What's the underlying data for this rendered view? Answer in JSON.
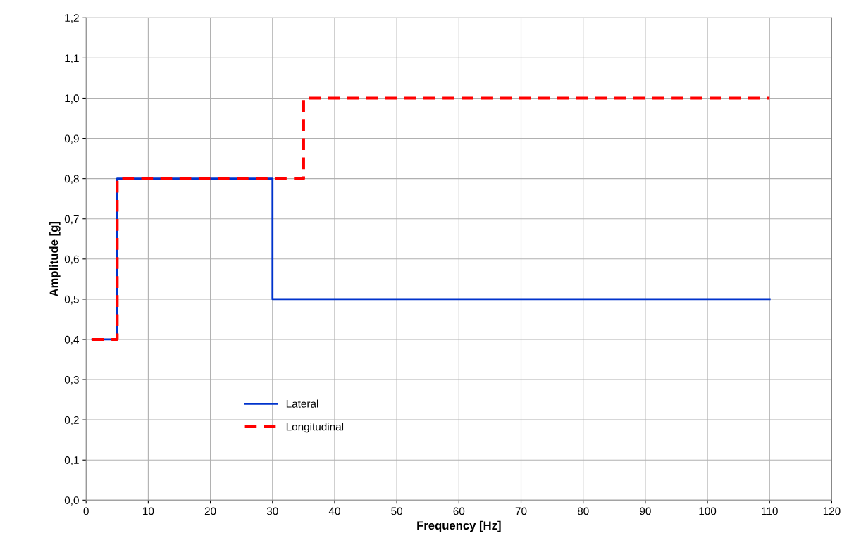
{
  "chart_data": {
    "type": "step",
    "xlabel": "Frequency [Hz]",
    "ylabel": "Amplitude [g]",
    "series": [
      {
        "name": "Lateral",
        "color": "#0033cc",
        "line_style": "solid",
        "x": [
          1,
          5,
          30,
          110
        ],
        "values": [
          0.4,
          0.8,
          0.5,
          0.5
        ]
      },
      {
        "name": "Longitudinal",
        "color": "#ff0000",
        "line_style": "dashed",
        "x": [
          1,
          5,
          35,
          110
        ],
        "values": [
          0.4,
          0.8,
          1.0,
          1.0
        ]
      }
    ],
    "xlim": [
      0,
      120
    ],
    "xticks": [
      0,
      10,
      20,
      30,
      40,
      50,
      60,
      70,
      80,
      90,
      100,
      110,
      120
    ],
    "ylim": [
      0,
      1.2
    ],
    "yticks": [
      {
        "value": 0,
        "label": "0,0"
      },
      {
        "value": 0.1,
        "label": "0,1"
      },
      {
        "value": 0.2,
        "label": "0,2"
      },
      {
        "value": 0.3,
        "label": "0,3"
      },
      {
        "value": 0.4,
        "label": "0,4"
      },
      {
        "value": 0.5,
        "label": "0,5"
      },
      {
        "value": 0.6,
        "label": "0,6"
      },
      {
        "value": 0.7,
        "label": "0,7"
      },
      {
        "value": 0.8,
        "label": "0,8"
      },
      {
        "value": 0.9,
        "label": "0,9"
      },
      {
        "value": 1.0,
        "label": "1,0"
      },
      {
        "value": 1.1,
        "label": "1,1"
      },
      {
        "value": 1.2,
        "label": "1,2"
      }
    ],
    "grid": true,
    "legend": "bottom left",
    "marker": "none"
  }
}
